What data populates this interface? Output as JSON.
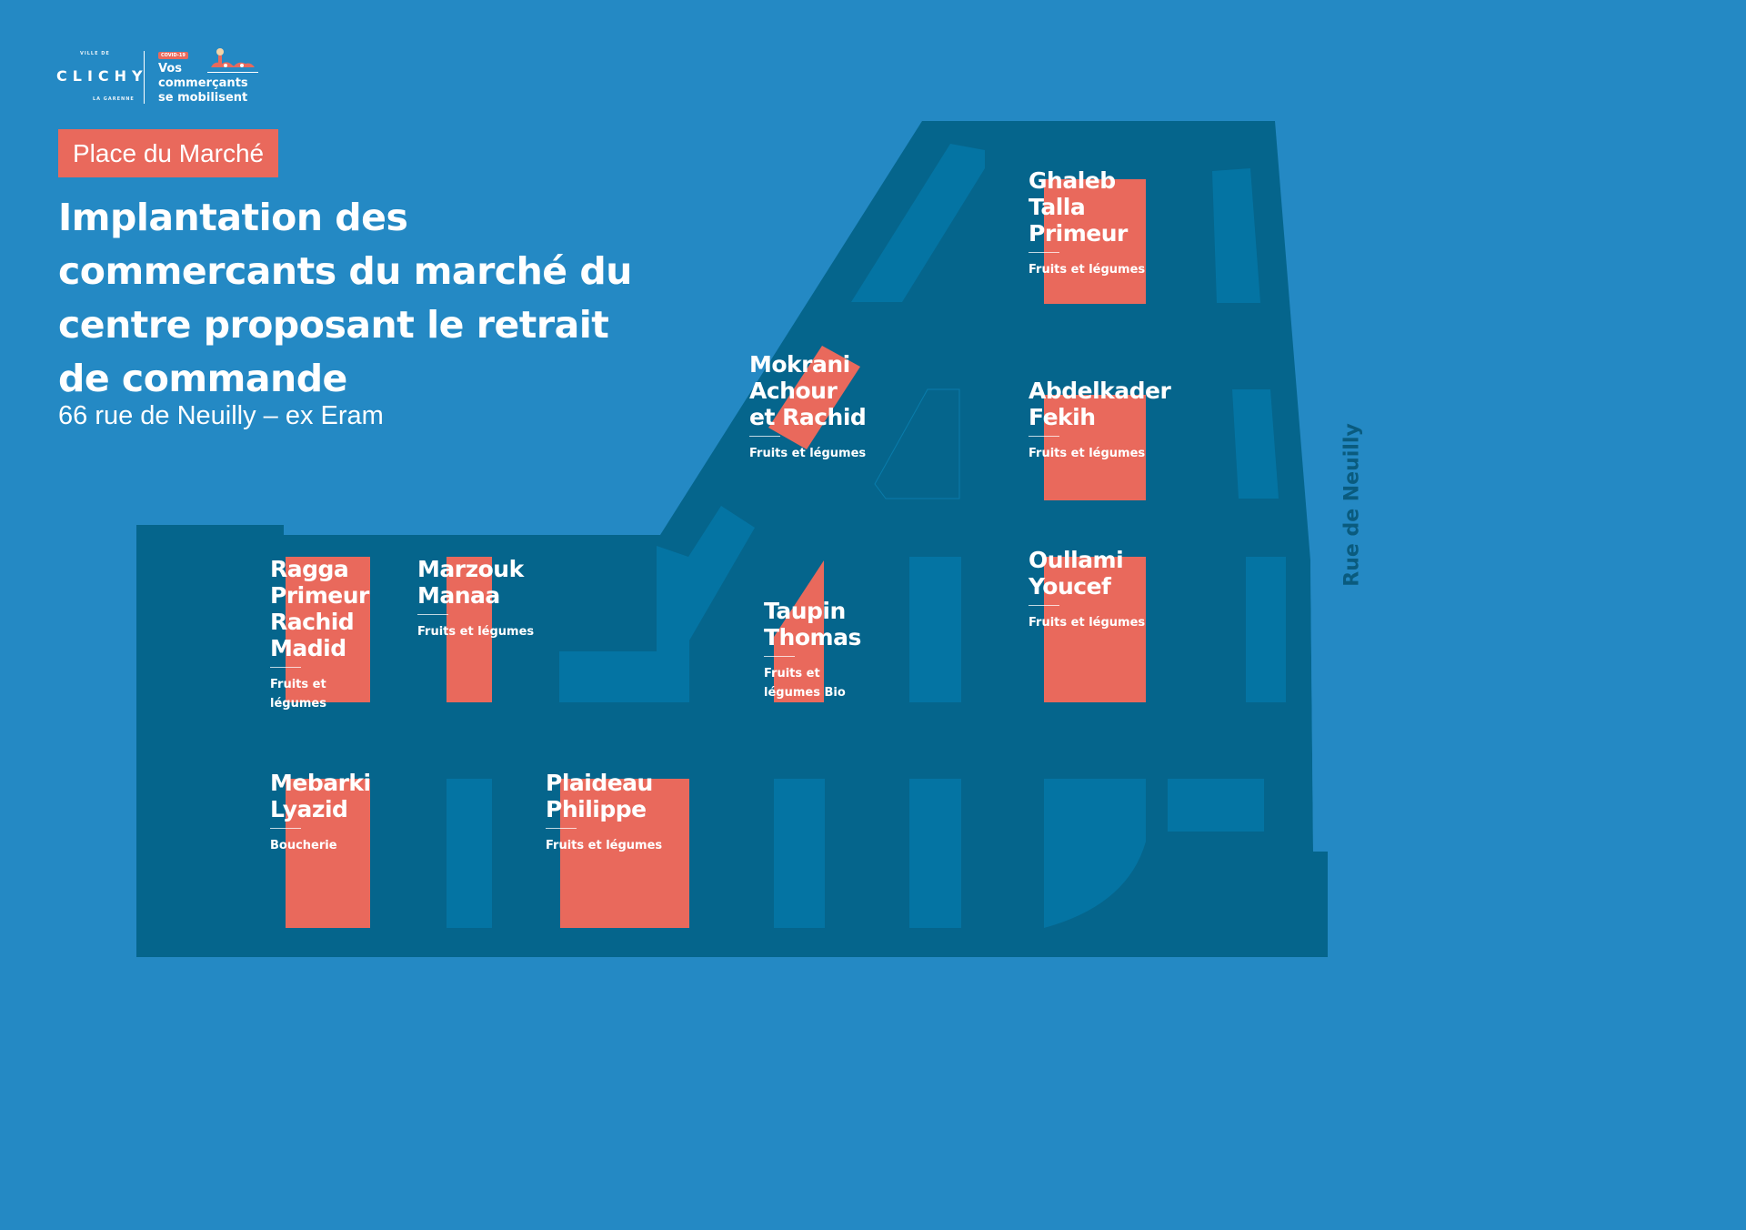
{
  "header": {
    "logo_city_top": "VILLE DE",
    "logo_city": "CLICHY",
    "logo_city_bottom": "LA GARENNE",
    "covid_tag": "COVID-19",
    "campaign": "Vos\ncommerçants\nse mobilisent"
  },
  "place_tag": "Place du Marché",
  "title": "Implantation des commercants du marché du centre proposant le retrait de commande",
  "subtitle": "66 rue de Neuilly – ex Eram",
  "street": "Rue de Neuilly",
  "colors": {
    "background": "#2489c4",
    "market_area": "#05658c",
    "stall_empty": "#0474a3",
    "stall_merchant": "#e9695c",
    "accent_text": "#ffffff"
  },
  "merchants": [
    {
      "name": "Ghaleb\nTalla\nPrimeur",
      "type": "Fruits et légumes"
    },
    {
      "name": "Mokrani\nAchour\net Rachid",
      "type": "Fruits et légumes"
    },
    {
      "name": "Abdelkader\nFekih",
      "type": "Fruits et légumes"
    },
    {
      "name": "Ragga\nPrimeur\nRachid\nMadid",
      "type": "Fruits et\nlégumes"
    },
    {
      "name": "Marzouk\nManaa",
      "type": "Fruits et légumes"
    },
    {
      "name": "Taupin\nThomas",
      "type": "Fruits et\nlégumes Bio"
    },
    {
      "name": "Oullami\nYoucef",
      "type": "Fruits et légumes"
    },
    {
      "name": "Mebarki\nLyazid",
      "type": "Boucherie"
    },
    {
      "name": "Plaideau\nPhilippe",
      "type": "Fruits et légumes"
    }
  ]
}
